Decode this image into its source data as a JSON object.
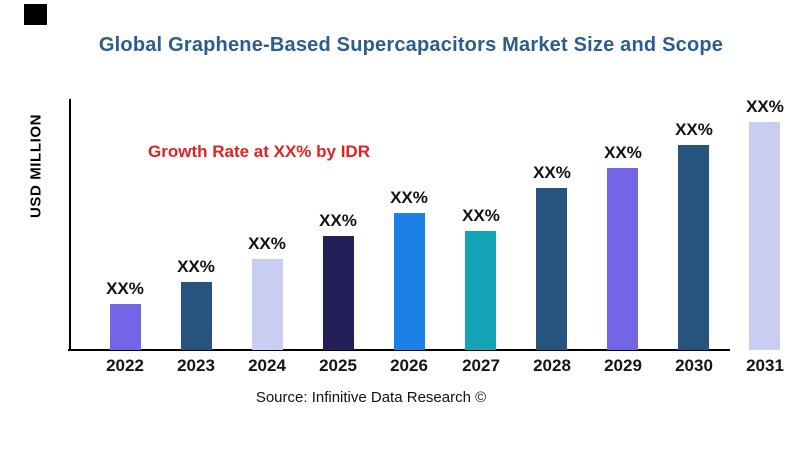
{
  "header": {
    "title": "Global Graphene-Based Supercapacitors Market Size and Scope",
    "title_color": "#2B5E8D"
  },
  "annotation": {
    "text": "Growth Rate at XX% by IDR",
    "color": "#DF2323"
  },
  "axes": {
    "y_label": "USD MILLION",
    "axis_color": "#000000",
    "x_ticks": [
      "2022",
      "2023",
      "2024",
      "2025",
      "2026",
      "2027",
      "2028",
      "2029",
      "2030",
      "2031"
    ]
  },
  "source": {
    "text": "Source: Infinitive Data Research ©"
  },
  "chart_data": {
    "type": "bar",
    "title": "Global Graphene-Based Supercapacitors Market Size and Scope",
    "xlabel": "",
    "ylabel": "USD MILLION",
    "categories": [
      "2022",
      "2023",
      "2024",
      "2025",
      "2026",
      "2027",
      "2028",
      "2029",
      "2030",
      "2031"
    ],
    "values": [
      20,
      30,
      40,
      50,
      60,
      52,
      71,
      80,
      90,
      100
    ],
    "values_unit": "relative bar height, % of tallest bar (numeric axis unlabeled)",
    "bar_labels": [
      "XX%",
      "XX%",
      "XX%",
      "XX%",
      "XX%",
      "XX%",
      "XX%",
      "XX%",
      "XX%",
      "XX%"
    ],
    "bar_colors": [
      "#7365E6",
      "#26547E",
      "#C9CDF1",
      "#241F58",
      "#1C81E6",
      "#13A4B5",
      "#26547E",
      "#7365E6",
      "#26547E",
      "#C9CDF1"
    ],
    "annotation": "Growth Rate at XX% by IDR",
    "ylim": [
      0,
      100
    ],
    "grid": false,
    "legend": false
  }
}
